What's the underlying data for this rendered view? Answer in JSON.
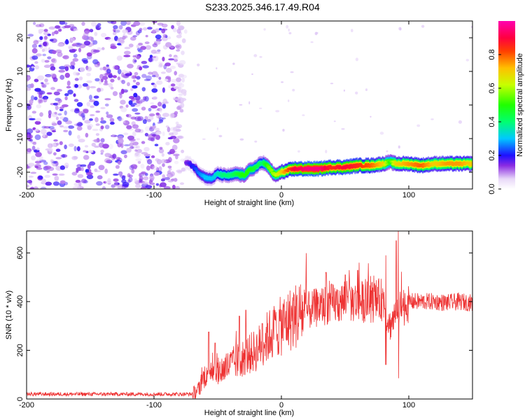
{
  "title": "S233.2025.346.17.49.R04",
  "chart_data": [
    {
      "type": "heatmap",
      "xlabel": "Height of straight line (km)",
      "ylabel": "Frequency (Hz)",
      "xlim": [
        -200,
        150
      ],
      "ylim": [
        -25,
        25
      ],
      "x_ticks": [
        -200,
        -100,
        0,
        100
      ],
      "y_ticks": [
        20,
        10,
        0,
        -10,
        -20
      ],
      "colorbar": {
        "label": "Normalized spectral amplitude",
        "range": [
          0,
          1
        ],
        "ticks": [
          0.0,
          0.2,
          0.4,
          0.6,
          0.8
        ]
      },
      "ridge": {
        "x": [
          -75,
          -70,
          -65,
          -60,
          -55,
          -50,
          -45,
          -40,
          -35,
          -30,
          -25,
          -20,
          -15,
          -10,
          -5,
          0,
          10,
          20,
          30,
          40,
          50,
          60,
          70,
          80,
          85,
          90,
          100,
          110,
          120,
          130,
          140,
          150
        ],
        "frequency": [
          -17,
          -18,
          -20,
          -21.5,
          -22,
          -20.5,
          -21,
          -21,
          -20.5,
          -21,
          -19.5,
          -18.5,
          -17,
          -18.5,
          -21,
          -20,
          -19,
          -19,
          -19,
          -18.5,
          -18.5,
          -18,
          -18,
          -17.5,
          -17,
          -17.5,
          -17.5,
          -18,
          -17.5,
          -17.5,
          -17.5,
          -17.5
        ],
        "amplitude": [
          0.15,
          0.2,
          0.25,
          0.3,
          0.3,
          0.35,
          0.4,
          0.4,
          0.45,
          0.5,
          0.5,
          0.45,
          0.4,
          0.55,
          0.6,
          0.7,
          0.9,
          0.95,
          0.95,
          0.85,
          0.9,
          0.85,
          0.8,
          0.7,
          0.5,
          0.7,
          0.75,
          0.8,
          0.7,
          0.75,
          0.75,
          0.7
        ]
      },
      "noise_region": {
        "x_range": [
          -200,
          -75
        ],
        "frequency_range": [
          -25,
          25
        ],
        "amplitude": [
          0.05,
          0.2
        ]
      }
    },
    {
      "type": "line",
      "xlabel": "Height of straight line (km)",
      "ylabel": "SNR (10 * v/v)",
      "xlim": [
        -200,
        150
      ],
      "ylim": [
        0,
        690
      ],
      "x_ticks": [
        -200,
        -100,
        0,
        100
      ],
      "y_ticks": [
        0,
        200,
        400,
        600
      ],
      "color": "#ee3333",
      "trend": {
        "x": [
          -200,
          -150,
          -100,
          -70,
          -65,
          -60,
          -55,
          -50,
          -40,
          -30,
          -20,
          -10,
          0,
          10,
          20,
          30,
          40,
          50,
          60,
          70,
          80,
          85,
          90,
          95,
          100,
          110,
          120,
          130,
          140,
          150
        ],
        "y": [
          20,
          20,
          20,
          20,
          40,
          100,
          130,
          110,
          140,
          170,
          200,
          260,
          300,
          340,
          360,
          380,
          390,
          400,
          400,
          400,
          410,
          300,
          350,
          380,
          400,
          400,
          400,
          395,
          400,
          395
        ]
      },
      "spikes": [
        {
          "x": -57,
          "y": 275
        },
        {
          "x": -52,
          "y": 230
        },
        {
          "x": -33,
          "y": 340
        },
        {
          "x": -28,
          "y": 365
        },
        {
          "x": -15,
          "y": 310
        },
        {
          "x": -5,
          "y": 325
        },
        {
          "x": 35,
          "y": 520
        },
        {
          "x": 50,
          "y": 510
        },
        {
          "x": 60,
          "y": 530
        },
        {
          "x": 82,
          "y": 590
        },
        {
          "x": 90,
          "y": 650
        },
        {
          "x": 92,
          "y": 690
        },
        {
          "x": 92,
          "y": 85
        },
        {
          "x": 82,
          "y": 140
        }
      ]
    }
  ]
}
